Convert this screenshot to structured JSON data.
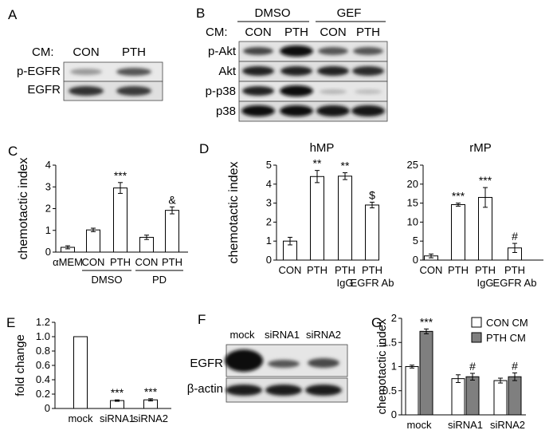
{
  "panels": {
    "A": {
      "letter": "A",
      "cm_label": "CM:",
      "lanes": [
        "CON",
        "PTH"
      ],
      "rows": [
        "p-EGFR",
        "EGFR"
      ]
    },
    "B": {
      "letter": "B",
      "groups": [
        "DMSO",
        "GEF"
      ],
      "cm_label": "CM:",
      "lanes": [
        "CON",
        "PTH",
        "CON",
        "PTH"
      ],
      "rows": [
        "p-Akt",
        "Akt",
        "p-p38",
        "p38"
      ]
    },
    "F": {
      "letter": "F",
      "lanes": [
        "mock",
        "siRNA1",
        "siRNA2"
      ],
      "rows": [
        "EGFR",
        "β-actin"
      ]
    }
  },
  "chart_data": [
    {
      "id": "C",
      "letter": "C",
      "type": "bar",
      "ylabel": "chemotactic index",
      "ylim": [
        0,
        4
      ],
      "yticks": [
        "0",
        "1",
        "2",
        "3",
        "4"
      ],
      "categories": [
        "αMEM",
        "CON",
        "PTH",
        "CON",
        "PTH"
      ],
      "values": [
        0.22,
        1.02,
        2.95,
        0.68,
        1.92
      ],
      "errors": [
        0.07,
        0.08,
        0.25,
        0.1,
        0.16
      ],
      "annotations": [
        "",
        "",
        "***",
        "",
        "&"
      ],
      "groups": [
        {
          "label": "DMSO",
          "from": 1,
          "to": 2
        },
        {
          "label": "PD",
          "from": 3,
          "to": 4
        }
      ]
    },
    {
      "id": "D1",
      "letter": "D",
      "type": "bar",
      "title": "hMP",
      "ylabel": "chemotactic index",
      "ylim": [
        0,
        5
      ],
      "yticks": [
        "0",
        "1",
        "2",
        "3",
        "4",
        "5"
      ],
      "categories": [
        "CON",
        "PTH",
        "PTH",
        "PTH"
      ],
      "sublabels": [
        "",
        "",
        "IgG",
        "EGFR Ab"
      ],
      "values": [
        1.0,
        4.4,
        4.42,
        2.9
      ],
      "errors": [
        0.2,
        0.32,
        0.18,
        0.15
      ],
      "annotations": [
        "",
        "**",
        "**",
        "$"
      ]
    },
    {
      "id": "D2",
      "type": "bar",
      "title": "rMP",
      "ylim": [
        0,
        25
      ],
      "yticks": [
        "0",
        "5",
        "10",
        "15",
        "20",
        "25"
      ],
      "categories": [
        "CON",
        "PTH",
        "PTH",
        "PTH"
      ],
      "sublabels": [
        "",
        "",
        "IgG",
        "EGFR Ab"
      ],
      "values": [
        1.1,
        14.6,
        16.5,
        3.2
      ],
      "errors": [
        0.5,
        0.4,
        2.6,
        1.2
      ],
      "annotations": [
        "",
        "***",
        "***",
        "#"
      ]
    },
    {
      "id": "E",
      "letter": "E",
      "type": "bar",
      "ylabel": "fold change",
      "ylim": [
        0,
        1.2
      ],
      "yticks": [
        "0",
        "0.2",
        "0.4",
        "0.6",
        "0.8",
        "1.0",
        "1.2"
      ],
      "categories": [
        "mock",
        "siRNA1",
        "siRNA2"
      ],
      "values": [
        1.0,
        0.11,
        0.12
      ],
      "errors": [
        0,
        0.01,
        0.015
      ],
      "annotations": [
        "",
        "***",
        "***"
      ]
    },
    {
      "id": "G",
      "letter": "G",
      "type": "bar",
      "ylabel": "chemotactic index",
      "ylim": [
        0,
        2
      ],
      "yticks": [
        "0",
        "0.5",
        "1",
        "1.5",
        "2"
      ],
      "categories": [
        "mock",
        "siRNA1",
        "siRNA2"
      ],
      "series": [
        {
          "name": "CON CM",
          "color": "#ffffff",
          "values": [
            1.0,
            0.75,
            0.71
          ],
          "errors": [
            0.03,
            0.08,
            0.05
          ],
          "annotations": [
            "",
            "",
            ""
          ]
        },
        {
          "name": "PTH CM",
          "color": "#7f7f7f",
          "values": [
            1.73,
            0.79,
            0.79
          ],
          "errors": [
            0.05,
            0.07,
            0.08
          ],
          "annotations": [
            "***",
            "#",
            "#"
          ]
        }
      ],
      "legend": "top-right"
    }
  ]
}
